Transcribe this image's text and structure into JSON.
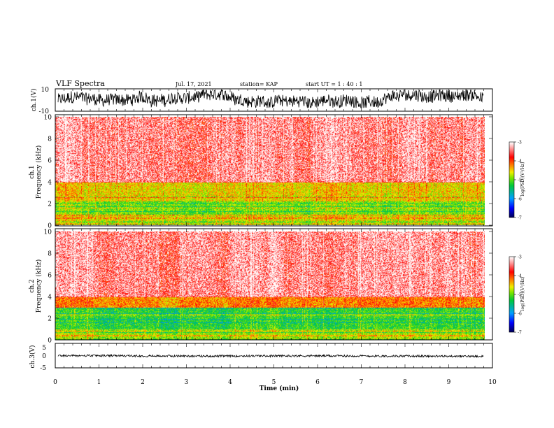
{
  "header": {
    "title": "VLF Spectra",
    "date": "Jul. 17, 2021",
    "station": "station= KAP",
    "start": "start UT =  1 : 40 : 1"
  },
  "chart_data": [
    {
      "type": "line",
      "ylabel": "ch.1(V)",
      "ylim": [
        -10,
        10
      ],
      "ytick_labels": [
        "10",
        "-10"
      ],
      "xlim": [
        0,
        10
      ],
      "description_values": {
        "typical_min": -7,
        "typical_max": 9
      }
    },
    {
      "type": "heatmap",
      "ylabel": "ch.1",
      "ylabel2": "Frequency (kHz)",
      "ylim": [
        0,
        10
      ],
      "ytick_labels": [
        "0",
        "2",
        "4",
        "6",
        "8",
        "10"
      ],
      "xlim": [
        0,
        9.8
      ],
      "colorbar": {
        "label": "log(PSD)(V²/Hz)",
        "ticks": [
          "-3",
          "-4",
          "-5",
          "-6",
          "-7"
        ],
        "range": [
          -7,
          -3
        ]
      },
      "bands": [
        {
          "fmin": 0.0,
          "fmax": 1.0,
          "level": -4.6
        },
        {
          "fmin": 1.0,
          "fmax": 2.2,
          "level": -4.9
        },
        {
          "fmin": 2.2,
          "fmax": 4.0,
          "level": -4.5
        },
        {
          "fmin": 4.0,
          "fmax": 10.0,
          "level": -3.5
        }
      ]
    },
    {
      "type": "heatmap",
      "ylabel": "ch.2",
      "ylabel2": "Frequency (kHz)",
      "ylim": [
        0,
        10
      ],
      "ytick_labels": [
        "0",
        "2",
        "4",
        "6",
        "8",
        "10"
      ],
      "xlim": [
        0,
        9.8
      ],
      "colorbar": {
        "label": "log(PSD)(V²/Hz)",
        "ticks": [
          "-3",
          "-4",
          "-5",
          "-6",
          "-7"
        ],
        "range": [
          -7,
          -3
        ]
      },
      "bands": [
        {
          "fmin": 0.0,
          "fmax": 1.0,
          "level": -4.8
        },
        {
          "fmin": 1.0,
          "fmax": 3.0,
          "level": -5.2
        },
        {
          "fmin": 3.0,
          "fmax": 4.0,
          "level": -4.2
        },
        {
          "fmin": 4.0,
          "fmax": 10.0,
          "level": -3.5
        }
      ]
    },
    {
      "type": "line",
      "ylabel": "ch.3(V)",
      "ylim": [
        -5,
        5
      ],
      "ytick_labels": [
        "5",
        "0",
        "-5"
      ],
      "xlim": [
        0,
        10
      ],
      "description_values": {
        "typical_min": -0.6,
        "typical_max": 0.6
      }
    }
  ],
  "x_axis": {
    "label": "Time (min)",
    "range": [
      0,
      10
    ],
    "tick_labels": [
      "0",
      "1",
      "2",
      "3",
      "4",
      "5",
      "6",
      "7",
      "8",
      "9",
      "10"
    ]
  }
}
